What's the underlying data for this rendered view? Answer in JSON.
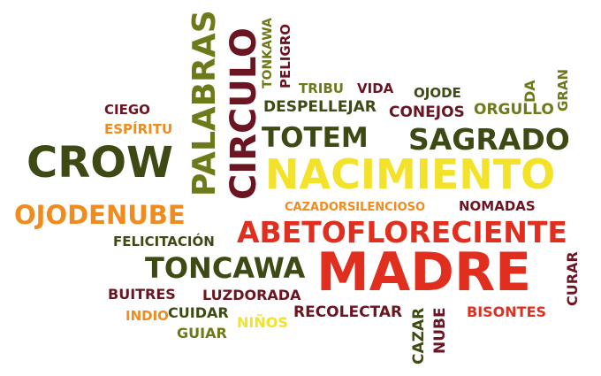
{
  "colors": {
    "dark_red": "#6b1422",
    "red": "#e02e1f",
    "orange": "#f08b1d",
    "yellow": "#f2e229",
    "olive": "#6e7a1a",
    "dark_green": "#3d4a14"
  },
  "words": {
    "crow": "CROW",
    "palabras": "PALABRAS",
    "circulo": "CIRCULO",
    "tonkawa": "TONKAWA",
    "peligro": "PELIGRO",
    "tribu": "TRIBU",
    "vida": "VIDA",
    "ojode": "OJODE",
    "da": "DA",
    "gran": "GRAN",
    "ciego": "CIEGO",
    "despellejar": "DESPELLEJAR",
    "conejos": "CONEJOS",
    "orgullo": "ORGULLO",
    "espiritu": "ESPÍRITU",
    "totem": "TOTEM",
    "sagrado": "SAGRADO",
    "nacimiento": "NACIMIENTO",
    "ojodenube": "OJODENUBE",
    "cazadorsilencioso": "CAZADORSILENCIOSO",
    "nomadas": "NOMADAS",
    "felicitacion": "FELICITACIÓN",
    "abetofloreciente": "ABETOFLORECIENTE",
    "toncawa": "TONCAWA",
    "madre": "MADRE",
    "curar": "CURAR",
    "buitres": "BUITRES",
    "luzdorada": "LUZDORADA",
    "indio": "INDIO",
    "cuidar": "CUIDAR",
    "recolectar": "RECOLECTAR",
    "bisontes": "BISONTES",
    "guiar": "GUIAR",
    "ninos": "NIÑOS",
    "cazar": "CAZAR",
    "nube": "NUBE"
  }
}
